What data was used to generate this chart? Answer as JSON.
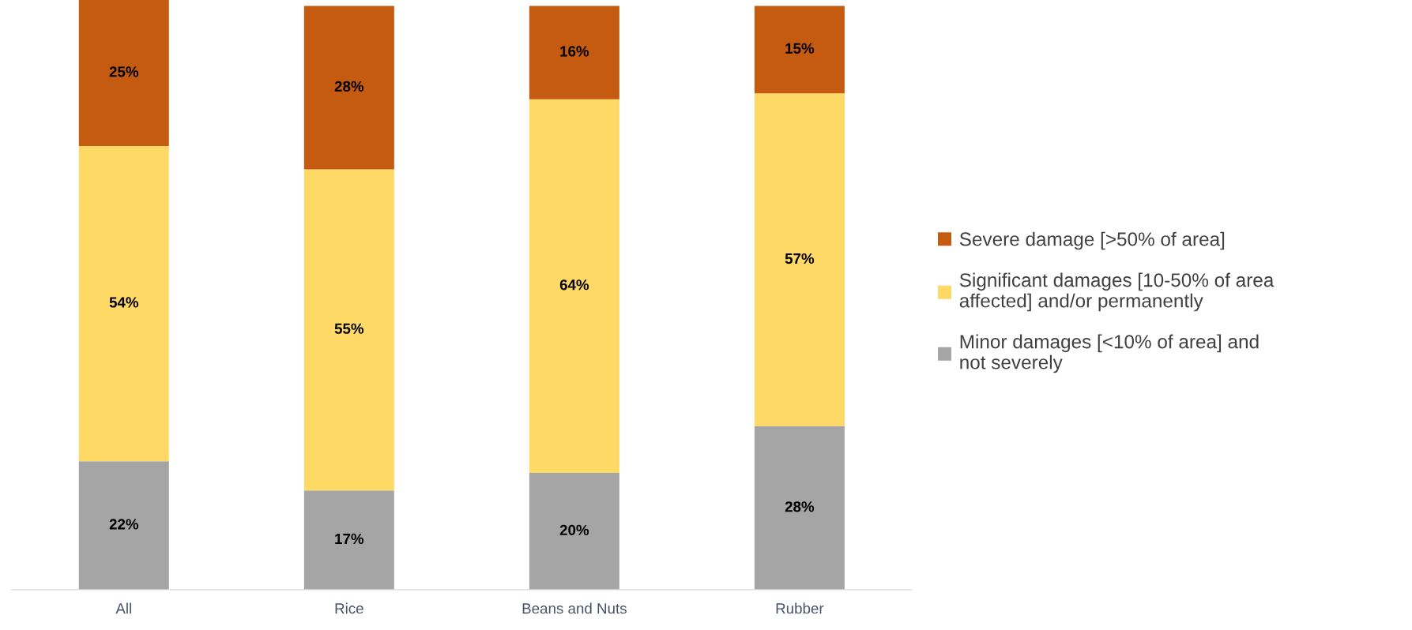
{
  "chart_data": {
    "type": "bar",
    "stacked": true,
    "legend": "right",
    "grid": false,
    "categories": [
      "All",
      "Rice",
      "Beans and Nuts",
      "Rubber"
    ],
    "series": [
      {
        "name": "Minor damages [<10% of area] and\nnot severely",
        "color": "#a5a5a5",
        "values": [
          22,
          17,
          20,
          28
        ],
        "value_labels": [
          "22%",
          "17%",
          "20%",
          "28%"
        ]
      },
      {
        "name": "Significant damages [10-50% of area\naffected] and/or permanently",
        "color": "#ffd966",
        "values": [
          54,
          55,
          64,
          57
        ],
        "value_labels": [
          "54%",
          "55%",
          "64%",
          "57%"
        ]
      },
      {
        "name": "Severe damage [>50% of area]",
        "color": "#c55a11",
        "values": [
          25,
          28,
          16,
          15
        ],
        "value_labels": [
          "25%",
          "28%",
          "16%",
          "15%"
        ]
      }
    ]
  }
}
